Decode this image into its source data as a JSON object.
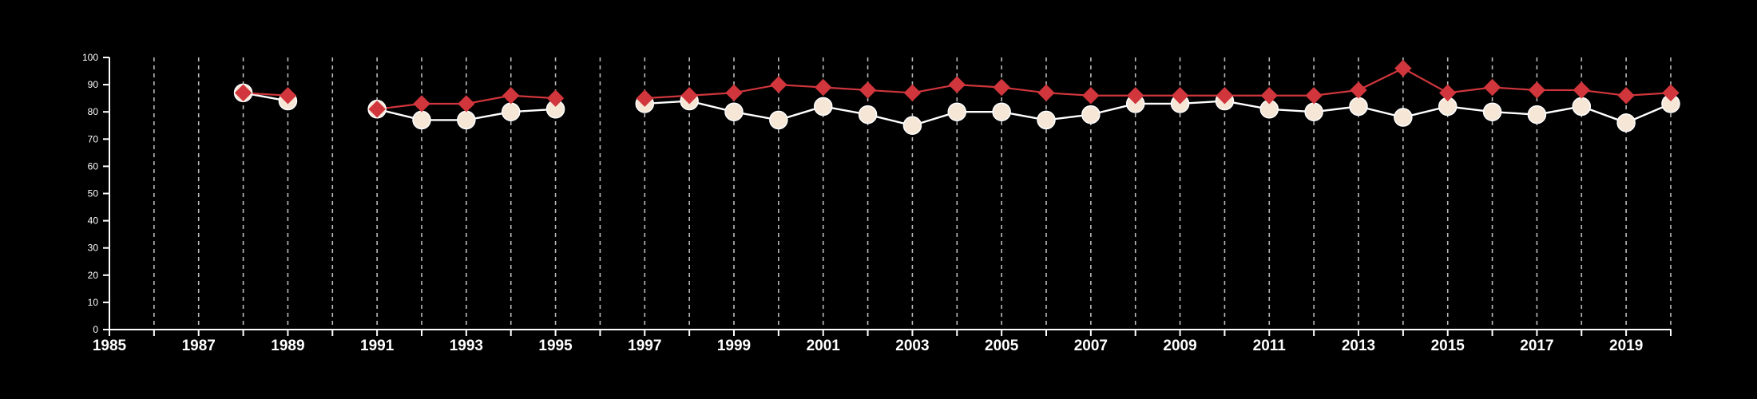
{
  "chart_data": {
    "type": "line",
    "title": "",
    "xlabel": "",
    "ylabel": "",
    "xlim": [
      1985,
      2020
    ],
    "ylim": [
      0,
      100
    ],
    "x_ticks": [
      1985,
      1987,
      1989,
      1991,
      1993,
      1995,
      1997,
      1999,
      2001,
      2003,
      2005,
      2007,
      2009,
      2011,
      2013,
      2015,
      2017,
      2019
    ],
    "y_ticks": [
      0,
      10,
      20,
      30,
      40,
      50,
      60,
      70,
      80,
      90,
      100
    ],
    "grid": {
      "vertical_dashed": true,
      "every_year": true,
      "horizontal": false
    },
    "legend": "none",
    "series": [
      {
        "marker": "diamond",
        "color": "#d0363c",
        "points": [
          {
            "x": 1988,
            "y": 87
          },
          {
            "x": 1989,
            "y": 86
          },
          {
            "x": 1991,
            "y": 81
          },
          {
            "x": 1992,
            "y": 83
          },
          {
            "x": 1993,
            "y": 83
          },
          {
            "x": 1994,
            "y": 86
          },
          {
            "x": 1995,
            "y": 85
          },
          {
            "x": 1997,
            "y": 85
          },
          {
            "x": 1998,
            "y": 86
          },
          {
            "x": 1999,
            "y": 87
          },
          {
            "x": 2000,
            "y": 90
          },
          {
            "x": 2001,
            "y": 89
          },
          {
            "x": 2002,
            "y": 88
          },
          {
            "x": 2003,
            "y": 87
          },
          {
            "x": 2004,
            "y": 90
          },
          {
            "x": 2005,
            "y": 89
          },
          {
            "x": 2006,
            "y": 87
          },
          {
            "x": 2007,
            "y": 86
          },
          {
            "x": 2008,
            "y": 86
          },
          {
            "x": 2009,
            "y": 86
          },
          {
            "x": 2010,
            "y": 86
          },
          {
            "x": 2011,
            "y": 86
          },
          {
            "x": 2012,
            "y": 86
          },
          {
            "x": 2013,
            "y": 88
          },
          {
            "x": 2014,
            "y": 96
          },
          {
            "x": 2015,
            "y": 87
          },
          {
            "x": 2016,
            "y": 89
          },
          {
            "x": 2017,
            "y": 88
          },
          {
            "x": 2018,
            "y": 88
          },
          {
            "x": 2019,
            "y": 86
          },
          {
            "x": 2020,
            "y": 87
          }
        ]
      },
      {
        "marker": "circle",
        "color": "#f5e6d6",
        "points": [
          {
            "x": 1988,
            "y": 87
          },
          {
            "x": 1989,
            "y": 84
          },
          {
            "x": 1991,
            "y": 81
          },
          {
            "x": 1992,
            "y": 77
          },
          {
            "x": 1993,
            "y": 77
          },
          {
            "x": 1994,
            "y": 80
          },
          {
            "x": 1995,
            "y": 81
          },
          {
            "x": 1997,
            "y": 83
          },
          {
            "x": 1998,
            "y": 84
          },
          {
            "x": 1999,
            "y": 80
          },
          {
            "x": 2000,
            "y": 77
          },
          {
            "x": 2001,
            "y": 82
          },
          {
            "x": 2002,
            "y": 79
          },
          {
            "x": 2003,
            "y": 75
          },
          {
            "x": 2004,
            "y": 80
          },
          {
            "x": 2005,
            "y": 80
          },
          {
            "x": 2006,
            "y": 77
          },
          {
            "x": 2007,
            "y": 79
          },
          {
            "x": 2008,
            "y": 83
          },
          {
            "x": 2009,
            "y": 83
          },
          {
            "x": 2010,
            "y": 84
          },
          {
            "x": 2011,
            "y": 81
          },
          {
            "x": 2012,
            "y": 80
          },
          {
            "x": 2013,
            "y": 82
          },
          {
            "x": 2014,
            "y": 78
          },
          {
            "x": 2015,
            "y": 82
          },
          {
            "x": 2016,
            "y": 80
          },
          {
            "x": 2017,
            "y": 79
          },
          {
            "x": 2018,
            "y": 82
          },
          {
            "x": 2019,
            "y": 76
          },
          {
            "x": 2020,
            "y": 83
          }
        ]
      }
    ],
    "colors": {
      "background": "#000000",
      "axis": "#ffffff",
      "grid": "#bbbbbb"
    }
  }
}
